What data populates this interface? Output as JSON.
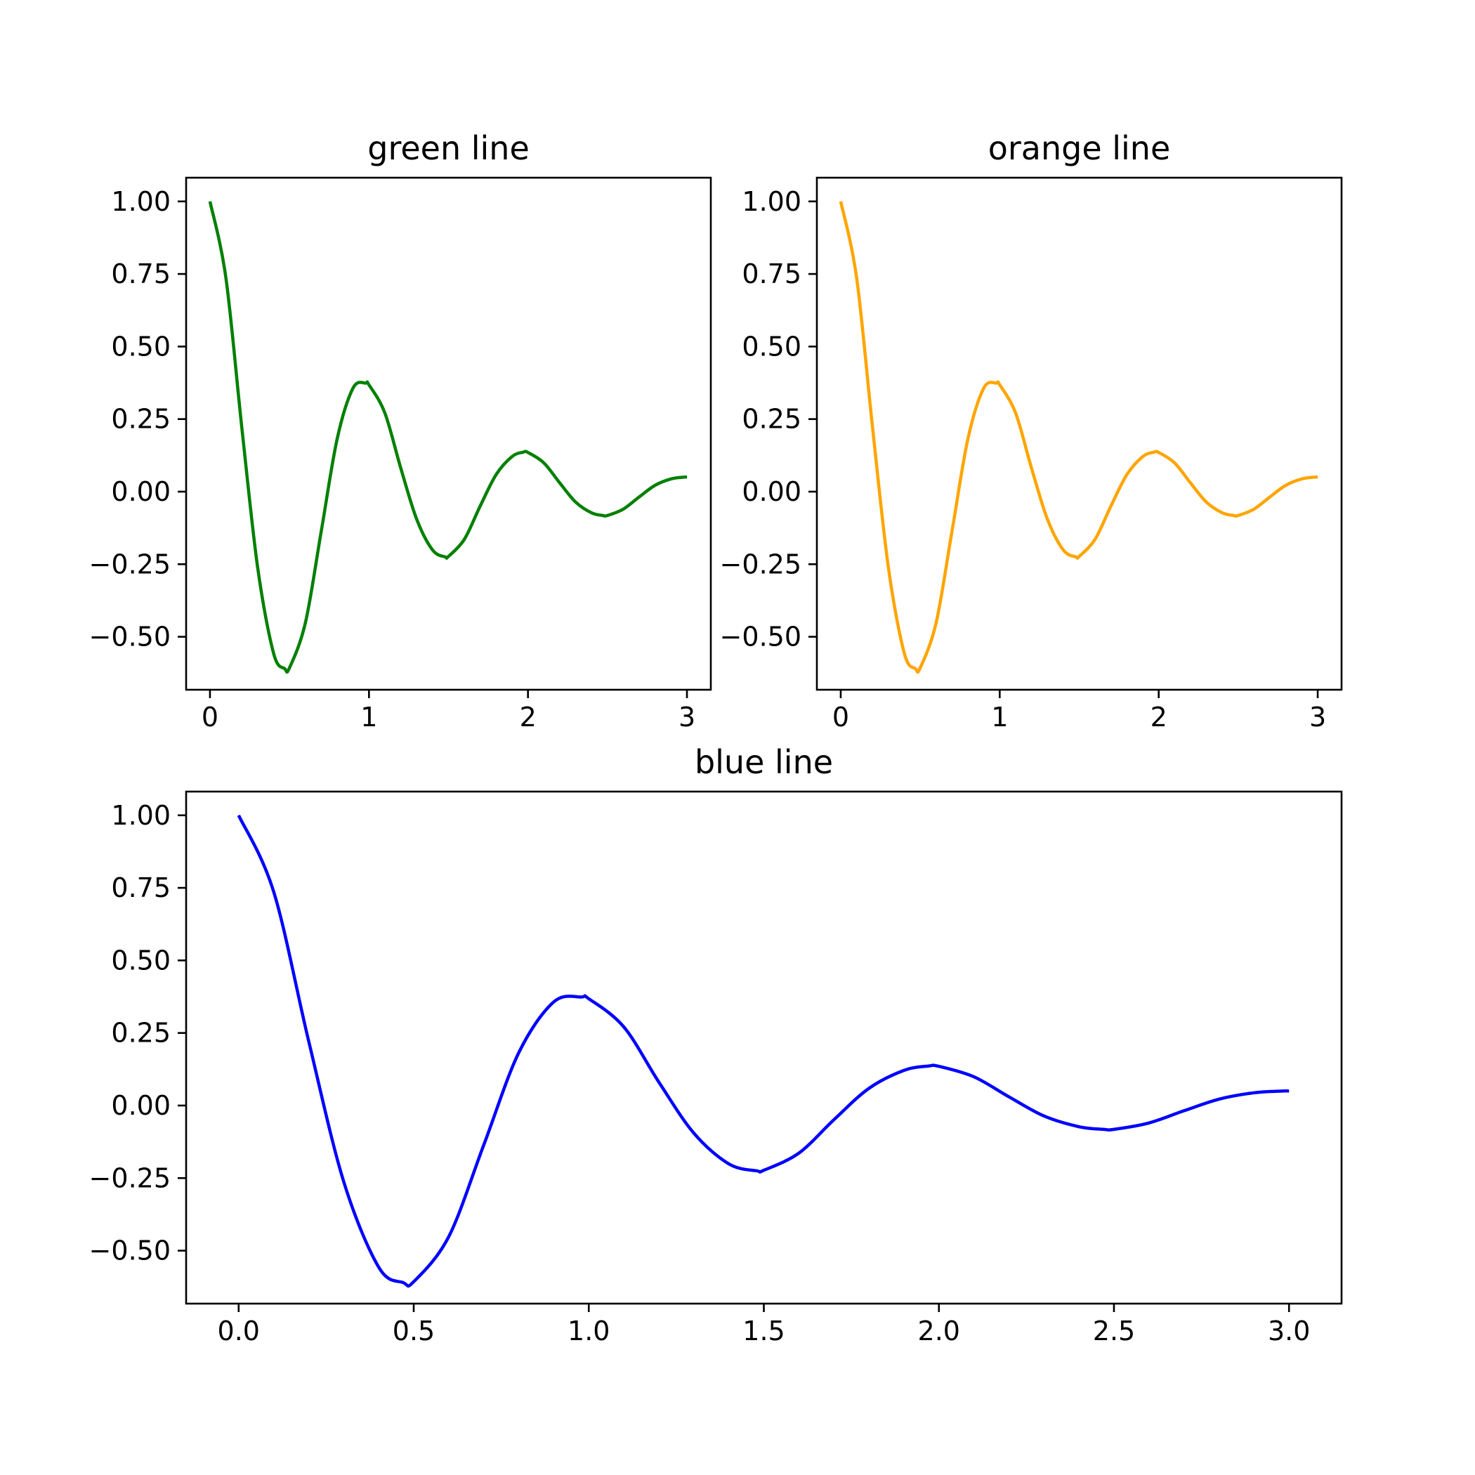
{
  "chart_data": [
    {
      "type": "line",
      "title": "green line",
      "color": "#008000",
      "xlim": [
        -0.15,
        3.15
      ],
      "ylim": [
        -0.6825,
        1.0817
      ],
      "x_ticks": [
        0,
        1,
        2,
        3
      ],
      "x_tick_labels": [
        "0",
        "1",
        "2",
        "3"
      ],
      "y_ticks": [
        -0.5,
        -0.25,
        0,
        0.25,
        0.5,
        0.75,
        1.0
      ],
      "y_tick_labels": [
        "−0.50",
        "−0.25",
        "0.00",
        "0.25",
        "0.50",
        "0.75",
        "1.00"
      ],
      "x": [
        0.0,
        0.1,
        0.2,
        0.3,
        0.4,
        0.47,
        0.5,
        0.6,
        0.7,
        0.8,
        0.9,
        0.98,
        1.0,
        1.1,
        1.2,
        1.3,
        1.4,
        1.48,
        1.5,
        1.6,
        1.7,
        1.8,
        1.9,
        1.97,
        2.0,
        2.1,
        2.2,
        2.3,
        2.4,
        2.47,
        2.5,
        2.6,
        2.7,
        2.8,
        2.9,
        2.98,
        3.0
      ],
      "y": [
        1.0,
        0.737,
        0.222,
        -0.262,
        -0.557,
        -0.61,
        -0.607,
        -0.452,
        -0.136,
        0.182,
        0.357,
        0.374,
        0.368,
        0.271,
        0.081,
        -0.095,
        -0.201,
        -0.225,
        -0.223,
        -0.164,
        -0.049,
        0.059,
        0.121,
        0.136,
        0.135,
        0.099,
        0.03,
        -0.036,
        -0.073,
        -0.082,
        -0.082,
        -0.06,
        -0.018,
        0.022,
        0.044,
        0.05,
        0.05
      ]
    },
    {
      "type": "line",
      "title": "orange line",
      "color": "#FFA500",
      "xlim": [
        -0.15,
        3.15
      ],
      "ylim": [
        -0.6825,
        1.0817
      ],
      "x_ticks": [
        0,
        1,
        2,
        3
      ],
      "x_tick_labels": [
        "0",
        "1",
        "2",
        "3"
      ],
      "y_ticks": [
        -0.5,
        -0.25,
        0,
        0.25,
        0.5,
        0.75,
        1.0
      ],
      "y_tick_labels": [
        "−0.50",
        "−0.25",
        "0.00",
        "0.25",
        "0.50",
        "0.75",
        "1.00"
      ],
      "x": [
        0.0,
        0.1,
        0.2,
        0.3,
        0.4,
        0.47,
        0.5,
        0.6,
        0.7,
        0.8,
        0.9,
        0.98,
        1.0,
        1.1,
        1.2,
        1.3,
        1.4,
        1.48,
        1.5,
        1.6,
        1.7,
        1.8,
        1.9,
        1.97,
        2.0,
        2.1,
        2.2,
        2.3,
        2.4,
        2.47,
        2.5,
        2.6,
        2.7,
        2.8,
        2.9,
        2.98,
        3.0
      ],
      "y": [
        1.0,
        0.737,
        0.222,
        -0.262,
        -0.557,
        -0.61,
        -0.607,
        -0.452,
        -0.136,
        0.182,
        0.357,
        0.374,
        0.368,
        0.271,
        0.081,
        -0.095,
        -0.201,
        -0.225,
        -0.223,
        -0.164,
        -0.049,
        0.059,
        0.121,
        0.136,
        0.135,
        0.099,
        0.03,
        -0.036,
        -0.073,
        -0.082,
        -0.082,
        -0.06,
        -0.018,
        0.022,
        0.044,
        0.05,
        0.05
      ]
    },
    {
      "type": "line",
      "title": "blue line",
      "color": "#0000FF",
      "xlim": [
        -0.15,
        3.15
      ],
      "ylim": [
        -0.6825,
        1.0817
      ],
      "x_ticks": [
        0,
        0.5,
        1.0,
        1.5,
        2.0,
        2.5,
        3.0
      ],
      "x_tick_labels": [
        "0.0",
        "0.5",
        "1.0",
        "1.5",
        "2.0",
        "2.5",
        "3.0"
      ],
      "y_ticks": [
        -0.5,
        -0.25,
        0,
        0.25,
        0.5,
        0.75,
        1.0
      ],
      "y_tick_labels": [
        "−0.50",
        "−0.25",
        "0.00",
        "0.25",
        "0.50",
        "0.75",
        "1.00"
      ],
      "x": [
        0.0,
        0.1,
        0.2,
        0.3,
        0.4,
        0.47,
        0.5,
        0.6,
        0.7,
        0.8,
        0.9,
        0.98,
        1.0,
        1.1,
        1.2,
        1.3,
        1.4,
        1.48,
        1.5,
        1.6,
        1.7,
        1.8,
        1.9,
        1.97,
        2.0,
        2.1,
        2.2,
        2.3,
        2.4,
        2.47,
        2.5,
        2.6,
        2.7,
        2.8,
        2.9,
        2.98,
        3.0
      ],
      "y": [
        1.0,
        0.737,
        0.222,
        -0.262,
        -0.557,
        -0.61,
        -0.607,
        -0.452,
        -0.136,
        0.182,
        0.357,
        0.374,
        0.368,
        0.271,
        0.081,
        -0.095,
        -0.201,
        -0.225,
        -0.223,
        -0.164,
        -0.049,
        0.059,
        0.121,
        0.136,
        0.135,
        0.099,
        0.03,
        -0.036,
        -0.073,
        -0.082,
        -0.082,
        -0.06,
        -0.018,
        0.022,
        0.044,
        0.05,
        0.05
      ]
    }
  ]
}
